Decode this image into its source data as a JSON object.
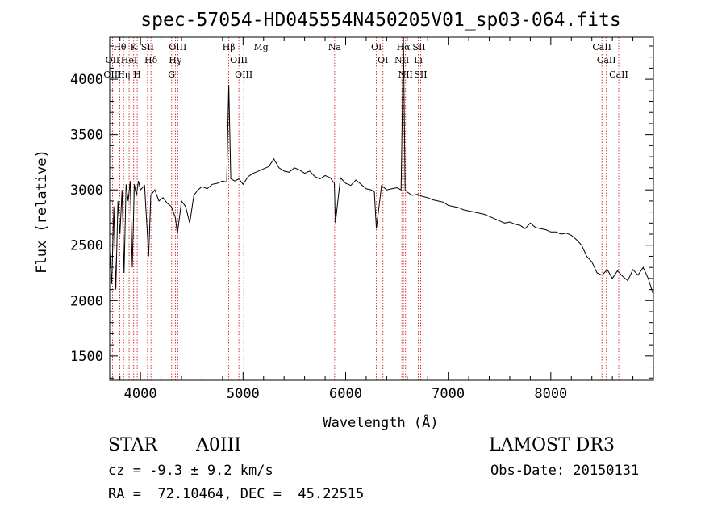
{
  "chart_data": {
    "type": "line",
    "title": "spec-57054-HD045554N450205V01_sp03-064.fits",
    "xlabel": "Wavelength (Å)",
    "ylabel": "Flux (relative)",
    "xlim": [
      3700,
      9000
    ],
    "ylim": [
      1280,
      4380
    ],
    "x_ticks": [
      4000,
      5000,
      6000,
      7000,
      8000
    ],
    "y_ticks": [
      1500,
      2000,
      2500,
      3000,
      3500,
      4000
    ],
    "grid": false,
    "legend": "none",
    "series": [
      {
        "x": [
          3700,
          3720,
          3740,
          3760,
          3780,
          3800,
          3820,
          3840,
          3860,
          3880,
          3900,
          3920,
          3940,
          3960,
          3980,
          4000,
          4040,
          4080,
          4100,
          4140,
          4180,
          4220,
          4260,
          4300,
          4340,
          4360,
          4400,
          4440,
          4480,
          4520,
          4560,
          4600,
          4650,
          4700,
          4750,
          4800,
          4840,
          4861,
          4880,
          4920,
          4960,
          5000,
          5050,
          5100,
          5150,
          5200,
          5250,
          5300,
          5350,
          5400,
          5450,
          5500,
          5550,
          5600,
          5650,
          5700,
          5750,
          5800,
          5850,
          5890,
          5900,
          5950,
          6000,
          6050,
          6100,
          6150,
          6200,
          6250,
          6280,
          6300,
          6350,
          6400,
          6450,
          6500,
          6540,
          6563,
          6580,
          6600,
          6650,
          6700,
          6750,
          6800,
          6850,
          6900,
          6950,
          7000,
          7050,
          7100,
          7150,
          7200,
          7250,
          7300,
          7350,
          7400,
          7450,
          7500,
          7550,
          7600,
          7650,
          7700,
          7750,
          7800,
          7850,
          7900,
          7950,
          8000,
          8050,
          8100,
          8150,
          8200,
          8250,
          8300,
          8350,
          8400,
          8450,
          8500,
          8550,
          8600,
          8650,
          8700,
          8750,
          8800,
          8850,
          8900,
          8950,
          9000
        ],
        "y": [
          2450,
          2150,
          2850,
          2100,
          2900,
          2600,
          3000,
          2250,
          3050,
          2900,
          3080,
          2300,
          3050,
          2950,
          3080,
          3000,
          3040,
          2400,
          2950,
          3000,
          2900,
          2930,
          2880,
          2850,
          2750,
          2600,
          2900,
          2850,
          2700,
          2950,
          3000,
          3030,
          3010,
          3050,
          3060,
          3080,
          3070,
          3950,
          3100,
          3080,
          3100,
          3050,
          3120,
          3150,
          3170,
          3190,
          3210,
          3280,
          3200,
          3170,
          3160,
          3200,
          3180,
          3150,
          3170,
          3120,
          3100,
          3130,
          3110,
          3060,
          2700,
          3110,
          3060,
          3040,
          3090,
          3050,
          3010,
          3000,
          2980,
          2650,
          3040,
          3000,
          3010,
          3020,
          3000,
          4380,
          3000,
          2980,
          2950,
          2960,
          2940,
          2930,
          2910,
          2900,
          2890,
          2860,
          2850,
          2840,
          2820,
          2810,
          2800,
          2790,
          2780,
          2760,
          2740,
          2720,
          2700,
          2710,
          2690,
          2680,
          2650,
          2700,
          2660,
          2650,
          2640,
          2620,
          2620,
          2600,
          2610,
          2590,
          2550,
          2500,
          2400,
          2350,
          2250,
          2230,
          2280,
          2200,
          2270,
          2220,
          2180,
          2280,
          2230,
          2300,
          2200,
          2050
        ]
      }
    ],
    "line_markers": [
      {
        "label": "Hθ",
        "wl": 3798
      },
      {
        "label": "OII",
        "wl": 3727
      },
      {
        "label": "OIII",
        "wl": 3727
      },
      {
        "label": "HeI",
        "wl": 3889
      },
      {
        "label": "Hη",
        "wl": 3835
      },
      {
        "label": "K",
        "wl": 3934
      },
      {
        "label": "H",
        "wl": 3968
      },
      {
        "label": "SII",
        "wl": 4069
      },
      {
        "label": "Hδ",
        "wl": 4102
      },
      {
        "label": "OIII",
        "wl": 4363
      },
      {
        "label": "Hγ",
        "wl": 4340
      },
      {
        "label": "G",
        "wl": 4304
      },
      {
        "label": "Hβ",
        "wl": 4861
      },
      {
        "label": "OIII",
        "wl": 4959
      },
      {
        "label": "OIII",
        "wl": 5007
      },
      {
        "label": "Mg",
        "wl": 5175
      },
      {
        "label": "Na",
        "wl": 5893
      },
      {
        "label": "OI",
        "wl": 6300
      },
      {
        "label": "OI",
        "wl": 6364
      },
      {
        "label": "Hα",
        "wl": 6563
      },
      {
        "label": "NII",
        "wl": 6548
      },
      {
        "label": "NII",
        "wl": 6584
      },
      {
        "label": "SII",
        "wl": 6716
      },
      {
        "label": "Li",
        "wl": 6708
      },
      {
        "label": "SII",
        "wl": 6731
      },
      {
        "label": "CaII",
        "wl": 8498
      },
      {
        "label": "CaII",
        "wl": 8542
      },
      {
        "label": "CaII",
        "wl": 8662
      }
    ]
  },
  "info": {
    "object_class": "STAR",
    "subclass": "A0III",
    "survey": "LAMOST DR3",
    "redshift": "cz = -9.3 ± 9.2 km/s",
    "obs_date": "Obs-Date: 20150131",
    "coords": "RA =  72.10464, DEC =  45.22515"
  },
  "colors": {
    "spectrum": "#000000",
    "line_marker": "#cc0000",
    "background": "#ffffff"
  }
}
